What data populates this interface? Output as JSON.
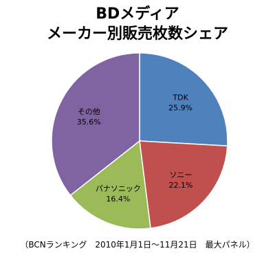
{
  "chart_data": {
    "type": "pie",
    "title_line_1": "BDメディア",
    "title_line_2": "メーカー別販売枚数シェア",
    "slices": [
      {
        "label": "TDK",
        "value": 25.9,
        "value_label": "25.9%",
        "color": "#4f81bd"
      },
      {
        "label": "ソニー",
        "value": 22.1,
        "value_label": "22.1%",
        "color": "#c0504d"
      },
      {
        "label": "パナソニック",
        "value": 16.4,
        "value_label": "16.4%",
        "color": "#9bbb59"
      },
      {
        "label": "その他",
        "value": 35.6,
        "value_label": "35.6%",
        "color": "#8064a2"
      }
    ],
    "start_angle_deg": 0,
    "direction": "clockwise",
    "legend": "none",
    "footnote": "（BCNランキング　2010年1月1日～11月21日　最大パネル）"
  }
}
